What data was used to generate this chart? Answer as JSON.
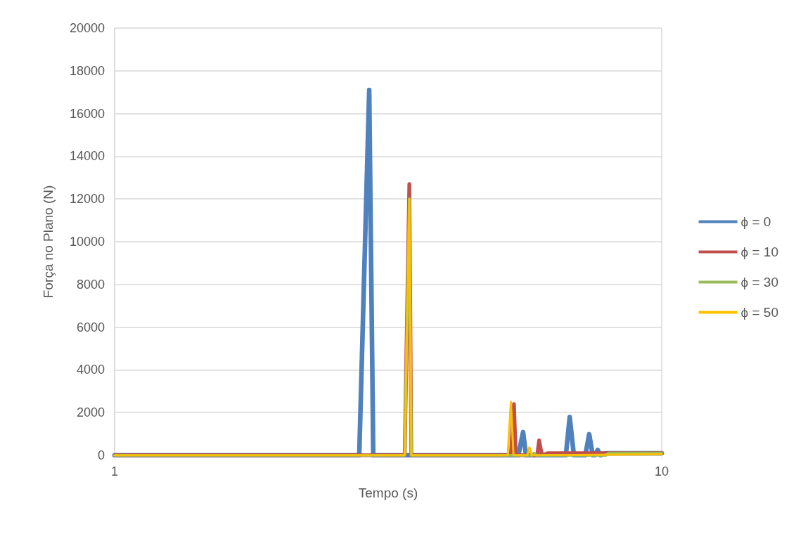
{
  "chart_data": {
    "type": "line",
    "xlabel": "Tempo (s)",
    "ylabel": "Força no Plano (N)",
    "log": "x",
    "xlim": [
      1,
      10
    ],
    "xticks": [
      1,
      10
    ],
    "ylim": [
      0,
      20000
    ],
    "yticks": [
      0,
      2000,
      4000,
      6000,
      8000,
      10000,
      12000,
      14000,
      16000,
      18000,
      20000
    ],
    "grid": true,
    "legend": "right",
    "marker": "none",
    "line_style": "solid",
    "series": [
      {
        "name": "ϕ = 0",
        "color": "#4f81bd",
        "x": [
          1,
          2.8,
          2.92,
          2.97,
          5.47,
          5.58,
          5.65,
          6.68,
          6.79,
          6.91,
          7.25,
          7.37,
          7.48,
          7.55,
          7.64,
          7.73,
          7.9,
          10
        ],
        "values": [
          0,
          0,
          17100,
          0,
          0,
          1090,
          0,
          0,
          1790,
          0,
          0,
          990,
          0,
          0,
          250,
          0,
          100,
          100
        ]
      },
      {
        "name": "ϕ = 10",
        "color": "#c0504d",
        "x": [
          1,
          3.39,
          3.457,
          3.486,
          5.3,
          5.37,
          5.41,
          5.92,
          5.97,
          6.04,
          6.19,
          7.9,
          10
        ],
        "values": [
          0,
          0,
          12700,
          0,
          0,
          2400,
          0,
          0,
          700,
          0,
          100,
          100,
          100
        ]
      },
      {
        "name": "ϕ = 30",
        "color": "#9bbb59",
        "x": [
          1,
          3.39,
          3.457,
          3.486,
          5.8,
          5.84,
          5.9,
          7.9,
          8,
          10
        ],
        "values": [
          0,
          0,
          12000,
          0,
          0,
          100,
          0,
          0,
          100,
          100
        ]
      },
      {
        "name": "ϕ = 50",
        "color": "#ffc000",
        "x": [
          1,
          3.39,
          3.457,
          3.486,
          5.23,
          5.3,
          5.36,
          5.68,
          5.73,
          5.79,
          10
        ],
        "values": [
          0,
          0,
          12000,
          0,
          0,
          2500,
          0,
          0,
          370,
          0,
          50
        ]
      }
    ]
  }
}
